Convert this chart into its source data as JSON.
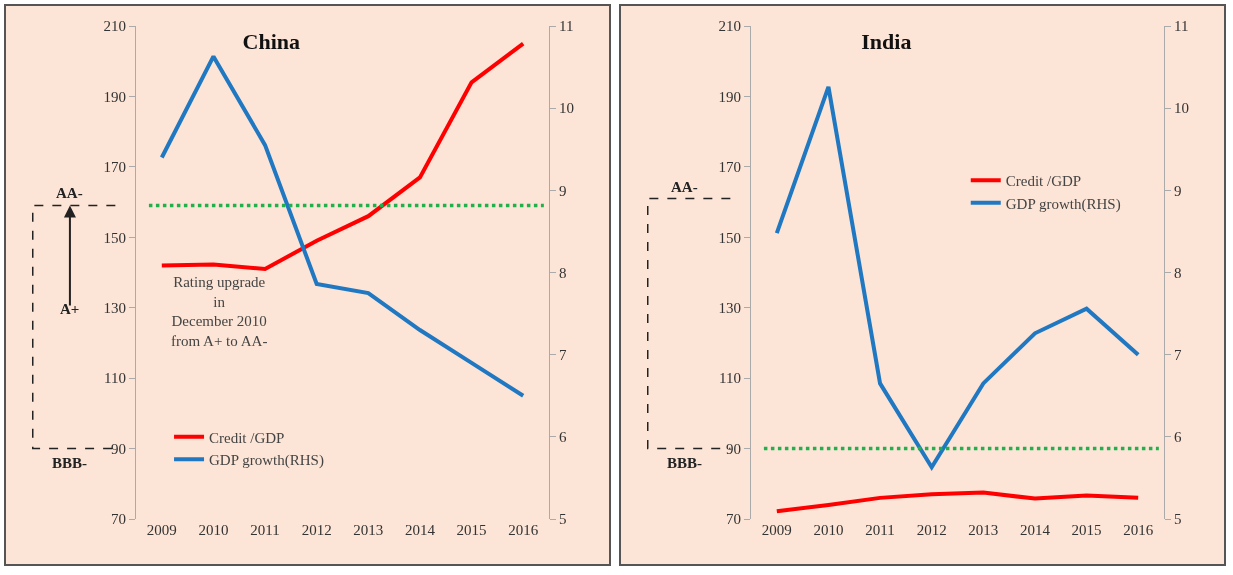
{
  "chart_data": [
    {
      "type": "line",
      "title": "China",
      "categories": [
        "2009",
        "2010",
        "2011",
        "2012",
        "2013",
        "2014",
        "2015",
        "2016"
      ],
      "series": [
        {
          "name": "Credit /GDP",
          "color": "#ff0000",
          "values": [
            142,
            142.3,
            141,
            149,
            156,
            167,
            194,
            205
          ]
        },
        {
          "name": "GDP growth(RHS)",
          "color": "#1f78c1",
          "axis": "y2",
          "values": [
            9.4,
            10.63,
            9.55,
            7.86,
            7.75,
            7.3,
            6.9,
            6.5
          ]
        }
      ],
      "ylim": [
        70,
        210
      ],
      "yticks": [
        70,
        90,
        110,
        130,
        150,
        170,
        190,
        210
      ],
      "y2lim": [
        5,
        11
      ],
      "y2ticks": [
        5,
        6,
        7,
        8,
        9,
        10,
        11
      ],
      "ref_lines": [
        {
          "axis": "y",
          "value": 159,
          "color": "#22b04c",
          "line_style": "dotted"
        }
      ],
      "annotations": [
        "AA-",
        "A+",
        "BBB-",
        "Rating upgrade\nin\nDecember 2010\nfrom A+ to AA-"
      ],
      "grid": false,
      "legend": "bottom",
      "line_style": "solid",
      "marker": "none"
    },
    {
      "type": "line",
      "title": "India",
      "categories": [
        "2009",
        "2010",
        "2011",
        "2012",
        "2013",
        "2014",
        "2015",
        "2016"
      ],
      "series": [
        {
          "name": "Credit /GDP",
          "color": "#ff0000",
          "values": [
            72.2,
            74,
            76,
            77,
            77.5,
            75.8,
            76.7,
            76
          ]
        },
        {
          "name": "GDP growth(RHS)",
          "color": "#1f78c1",
          "axis": "y2",
          "values": [
            8.48,
            10.26,
            6.65,
            5.63,
            6.65,
            7.26,
            7.56,
            7.0
          ]
        }
      ],
      "ylim": [
        70,
        210
      ],
      "yticks": [
        70,
        90,
        110,
        130,
        150,
        170,
        190,
        210
      ],
      "y2lim": [
        5,
        11
      ],
      "y2ticks": [
        5,
        6,
        7,
        8,
        9,
        10,
        11
      ],
      "ref_lines": [
        {
          "axis": "y",
          "value": 90,
          "color": "#22b04c",
          "line_style": "dotted"
        }
      ],
      "annotations": [
        "AA-",
        "BBB-"
      ],
      "grid": false,
      "legend": "right",
      "line_style": "solid",
      "marker": "none"
    }
  ]
}
